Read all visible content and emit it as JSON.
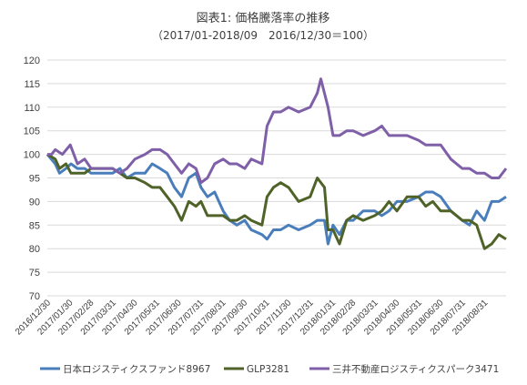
{
  "chart_data": {
    "type": "line",
    "title": "図表1: 価格騰落率の推移",
    "subtitle": "（2017/01-2018/09　2016/12/30＝100）",
    "ylim": [
      70,
      120
    ],
    "yticks": [
      70,
      75,
      80,
      85,
      90,
      95,
      100,
      105,
      110,
      115,
      120
    ],
    "grid": true,
    "legend_position": "bottom",
    "x_tick_labels": [
      "2016/12/30",
      "2017/01/30",
      "2017/02/28",
      "2017/03/31",
      "2017/04/30",
      "2017/05/31",
      "2017/06/30",
      "2017/07/31",
      "2017/08/31",
      "2017/09/30",
      "2017/10/31",
      "2017/11/30",
      "2017/12/31",
      "2018/01/31",
      "2018/02/28",
      "2018/03/31",
      "2018/04/30",
      "2018/05/31",
      "2018/06/30",
      "2018/07/31",
      "2018/08/31"
    ],
    "x_end": "2018/09/30",
    "series": [
      {
        "name": "日本ロジスティクスファンド8967",
        "color": "#4a7ebb",
        "points": [
          [
            "2016/12/30",
            100
          ],
          [
            "2017/01/10",
            98
          ],
          [
            "2017/01/16",
            96
          ],
          [
            "2017/01/25",
            97
          ],
          [
            "2017/02/01",
            98
          ],
          [
            "2017/02/10",
            97
          ],
          [
            "2017/02/20",
            97
          ],
          [
            "2017/03/01",
            96
          ],
          [
            "2017/03/15",
            96
          ],
          [
            "2017/03/31",
            96
          ],
          [
            "2017/04/10",
            97
          ],
          [
            "2017/04/20",
            95
          ],
          [
            "2017/05/01",
            96
          ],
          [
            "2017/05/15",
            96
          ],
          [
            "2017/05/25",
            98
          ],
          [
            "2017/06/05",
            97
          ],
          [
            "2017/06/15",
            96
          ],
          [
            "2017/06/25",
            93
          ],
          [
            "2017/07/05",
            91
          ],
          [
            "2017/07/15",
            95
          ],
          [
            "2017/07/25",
            96
          ],
          [
            "2017/08/01",
            93
          ],
          [
            "2017/08/10",
            91
          ],
          [
            "2017/08/20",
            92
          ],
          [
            "2017/09/01",
            88
          ],
          [
            "2017/09/10",
            86
          ],
          [
            "2017/09/20",
            85
          ],
          [
            "2017/10/01",
            86
          ],
          [
            "2017/10/10",
            84
          ],
          [
            "2017/10/25",
            83
          ],
          [
            "2017/11/01",
            82
          ],
          [
            "2017/11/10",
            84
          ],
          [
            "2017/11/20",
            84
          ],
          [
            "2017/12/01",
            85
          ],
          [
            "2017/12/15",
            84
          ],
          [
            "2017/12/31",
            85
          ],
          [
            "2018/01/10",
            86
          ],
          [
            "2018/01/20",
            86
          ],
          [
            "2018/01/25",
            81
          ],
          [
            "2018/02/01",
            85
          ],
          [
            "2018/02/10",
            83
          ],
          [
            "2018/02/20",
            86
          ],
          [
            "2018/03/01",
            86
          ],
          [
            "2018/03/15",
            88
          ],
          [
            "2018/03/31",
            88
          ],
          [
            "2018/04/10",
            87
          ],
          [
            "2018/04/20",
            88
          ],
          [
            "2018/05/01",
            90
          ],
          [
            "2018/05/15",
            90
          ],
          [
            "2018/05/31",
            91
          ],
          [
            "2018/06/10",
            92
          ],
          [
            "2018/06/20",
            92
          ],
          [
            "2018/07/01",
            91
          ],
          [
            "2018/07/15",
            88
          ],
          [
            "2018/07/31",
            86
          ],
          [
            "2018/08/10",
            85
          ],
          [
            "2018/08/20",
            88
          ],
          [
            "2018/08/31",
            86
          ],
          [
            "2018/09/10",
            90
          ],
          [
            "2018/09/20",
            90
          ],
          [
            "2018/09/30",
            91
          ]
        ]
      },
      {
        "name": "GLP3281",
        "color": "#4f6228",
        "points": [
          [
            "2016/12/30",
            100
          ],
          [
            "2017/01/10",
            99
          ],
          [
            "2017/01/16",
            97
          ],
          [
            "2017/01/25",
            98
          ],
          [
            "2017/02/01",
            96
          ],
          [
            "2017/02/10",
            96
          ],
          [
            "2017/02/20",
            96
          ],
          [
            "2017/03/01",
            97
          ],
          [
            "2017/03/15",
            97
          ],
          [
            "2017/03/31",
            97
          ],
          [
            "2017/04/10",
            96
          ],
          [
            "2017/04/20",
            95
          ],
          [
            "2017/05/01",
            95
          ],
          [
            "2017/05/15",
            94
          ],
          [
            "2017/05/25",
            93
          ],
          [
            "2017/06/05",
            93
          ],
          [
            "2017/06/15",
            91
          ],
          [
            "2017/06/25",
            89
          ],
          [
            "2017/07/05",
            86
          ],
          [
            "2017/07/15",
            90
          ],
          [
            "2017/07/25",
            89
          ],
          [
            "2017/08/01",
            90
          ],
          [
            "2017/08/10",
            87
          ],
          [
            "2017/08/20",
            87
          ],
          [
            "2017/09/01",
            87
          ],
          [
            "2017/09/10",
            86
          ],
          [
            "2017/09/20",
            86
          ],
          [
            "2017/10/01",
            87
          ],
          [
            "2017/10/10",
            86
          ],
          [
            "2017/10/25",
            85
          ],
          [
            "2017/11/01",
            91
          ],
          [
            "2017/11/10",
            93
          ],
          [
            "2017/11/20",
            94
          ],
          [
            "2017/12/01",
            93
          ],
          [
            "2017/12/15",
            90
          ],
          [
            "2017/12/31",
            91
          ],
          [
            "2018/01/10",
            95
          ],
          [
            "2018/01/20",
            93
          ],
          [
            "2018/01/25",
            84
          ],
          [
            "2018/02/01",
            84
          ],
          [
            "2018/02/10",
            81
          ],
          [
            "2018/02/20",
            86
          ],
          [
            "2018/03/01",
            87
          ],
          [
            "2018/03/15",
            86
          ],
          [
            "2018/03/31",
            87
          ],
          [
            "2018/04/10",
            88
          ],
          [
            "2018/04/20",
            90
          ],
          [
            "2018/05/01",
            88
          ],
          [
            "2018/05/15",
            91
          ],
          [
            "2018/05/31",
            91
          ],
          [
            "2018/06/10",
            89
          ],
          [
            "2018/06/20",
            90
          ],
          [
            "2018/07/01",
            88
          ],
          [
            "2018/07/15",
            88
          ],
          [
            "2018/07/31",
            86
          ],
          [
            "2018/08/10",
            86
          ],
          [
            "2018/08/20",
            85
          ],
          [
            "2018/08/31",
            80
          ],
          [
            "2018/09/10",
            81
          ],
          [
            "2018/09/20",
            83
          ],
          [
            "2018/09/30",
            82
          ]
        ]
      },
      {
        "name": "三井不動産ロジスティクスパーク3471",
        "color": "#7f5fa8",
        "points": [
          [
            "2016/12/30",
            100
          ],
          [
            "2017/01/05",
            100
          ],
          [
            "2017/01/10",
            101
          ],
          [
            "2017/01/20",
            100
          ],
          [
            "2017/01/31",
            102
          ],
          [
            "2017/02/10",
            98
          ],
          [
            "2017/02/20",
            99
          ],
          [
            "2017/03/01",
            97
          ],
          [
            "2017/03/15",
            97
          ],
          [
            "2017/03/31",
            97
          ],
          [
            "2017/04/10",
            96
          ],
          [
            "2017/04/20",
            97
          ],
          [
            "2017/05/01",
            99
          ],
          [
            "2017/05/15",
            100
          ],
          [
            "2017/05/25",
            101
          ],
          [
            "2017/06/05",
            101
          ],
          [
            "2017/06/15",
            100
          ],
          [
            "2017/06/25",
            98
          ],
          [
            "2017/07/05",
            96
          ],
          [
            "2017/07/15",
            98
          ],
          [
            "2017/07/25",
            97
          ],
          [
            "2017/08/01",
            94
          ],
          [
            "2017/08/10",
            95
          ],
          [
            "2017/08/20",
            98
          ],
          [
            "2017/09/01",
            99
          ],
          [
            "2017/09/10",
            98
          ],
          [
            "2017/09/20",
            98
          ],
          [
            "2017/10/01",
            97
          ],
          [
            "2017/10/10",
            99
          ],
          [
            "2017/10/25",
            98
          ],
          [
            "2017/11/01",
            106
          ],
          [
            "2017/11/10",
            109
          ],
          [
            "2017/11/20",
            109
          ],
          [
            "2017/12/01",
            110
          ],
          [
            "2017/12/15",
            109
          ],
          [
            "2017/12/31",
            110
          ],
          [
            "2018/01/10",
            113
          ],
          [
            "2018/01/15",
            116
          ],
          [
            "2018/01/25",
            110
          ],
          [
            "2018/02/01",
            104
          ],
          [
            "2018/02/10",
            104
          ],
          [
            "2018/02/20",
            105
          ],
          [
            "2018/03/01",
            105
          ],
          [
            "2018/03/15",
            104
          ],
          [
            "2018/03/31",
            105
          ],
          [
            "2018/04/10",
            106
          ],
          [
            "2018/04/20",
            104
          ],
          [
            "2018/05/01",
            104
          ],
          [
            "2018/05/15",
            104
          ],
          [
            "2018/05/31",
            103
          ],
          [
            "2018/06/10",
            102
          ],
          [
            "2018/06/20",
            102
          ],
          [
            "2018/07/01",
            102
          ],
          [
            "2018/07/15",
            99
          ],
          [
            "2018/07/31",
            97
          ],
          [
            "2018/08/10",
            97
          ],
          [
            "2018/08/20",
            96
          ],
          [
            "2018/08/31",
            96
          ],
          [
            "2018/09/10",
            95
          ],
          [
            "2018/09/20",
            95
          ],
          [
            "2018/09/30",
            97
          ]
        ]
      }
    ]
  }
}
